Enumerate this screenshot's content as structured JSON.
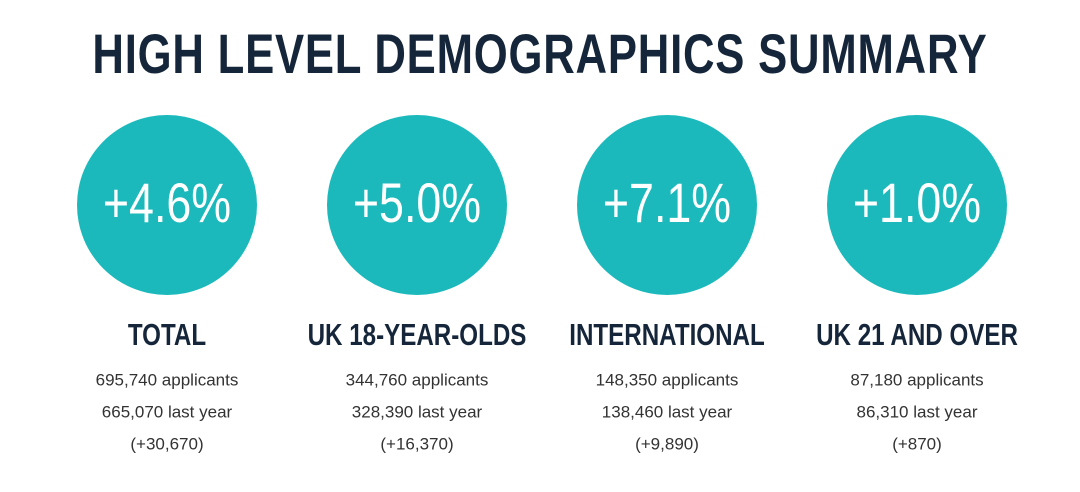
{
  "title": "HIGH LEVEL DEMOGRAPHICS SUMMARY",
  "cards": [
    {
      "percent": "+4.6%",
      "label": "TOTAL",
      "lines": [
        "695,740 applicants",
        "665,070 last year",
        "(+30,670)"
      ]
    },
    {
      "percent": "+5.0%",
      "label": "UK 18-YEAR-OLDS",
      "lines": [
        "344,760 applicants",
        "328,390 last year",
        "(+16,370)"
      ]
    },
    {
      "percent": "+7.1%",
      "label": "INTERNATIONAL",
      "lines": [
        "148,350 applicants",
        "138,460 last year",
        "(+9,890)"
      ]
    },
    {
      "percent": "+1.0%",
      "label": "UK 21 AND OVER",
      "lines": [
        "87,180 applicants",
        "86,310 last year",
        "(+870)"
      ]
    }
  ]
}
